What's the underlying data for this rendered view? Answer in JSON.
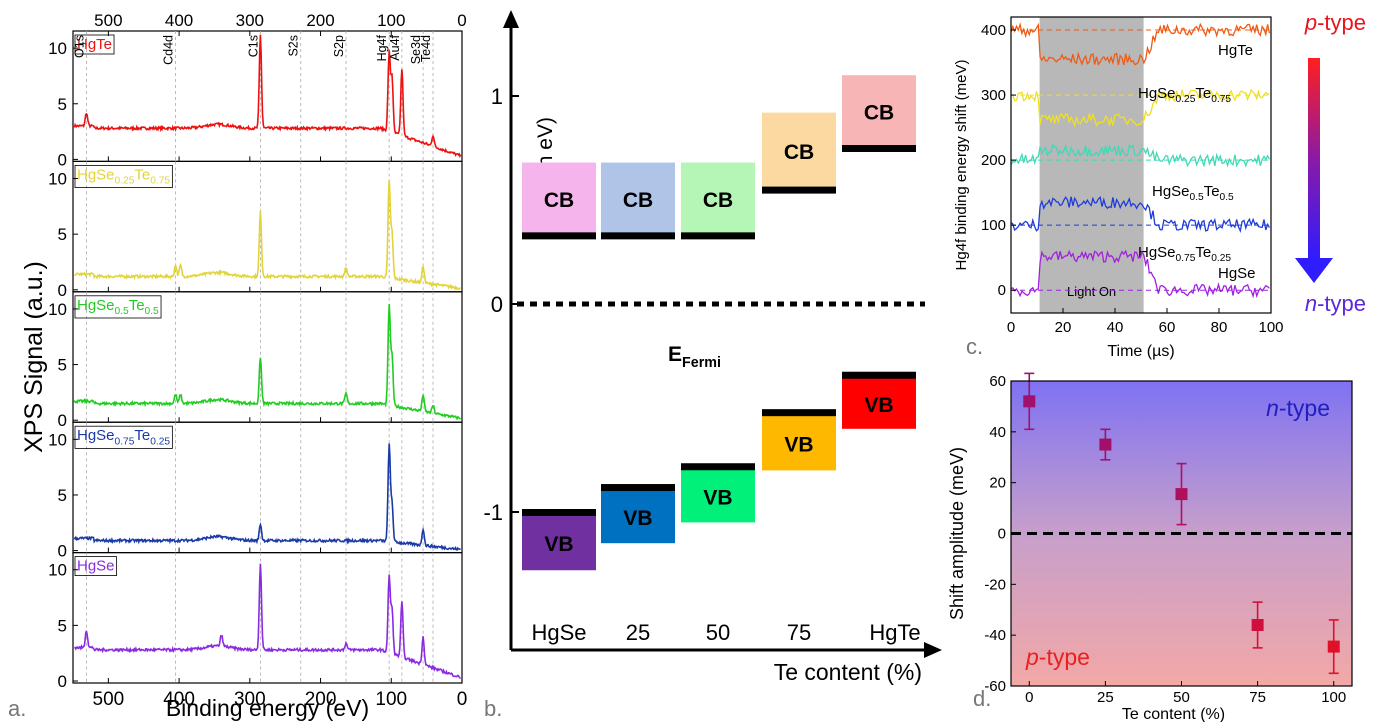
{
  "panel_labels": [
    "a.",
    "b.",
    "c.",
    "d."
  ],
  "colors": {
    "HgTe": "#ee1111",
    "HgSe0.25Te0.75": "#e3d43a",
    "HgSe0.5Te0.5": "#22cc22",
    "HgSe0.75Te0.25": "#1a3aa8",
    "HgSe": "#8a2be2",
    "c_HgTe": "#f05a14",
    "c_HgSe0.25Te0.75": "#f0e01e",
    "c_HgSe0.5Te0.5": "#3fd9b4",
    "c_HgSe0.75Te0.25": "#1e3cdc",
    "c_HgSe": "#a020e0",
    "n_type": "#5a28dc",
    "p_type": "#e8141e"
  },
  "chart_data": [
    {
      "type": "line",
      "panel": "a",
      "xlabel": "Binding energy (eV)",
      "ylabel": "XPS Signal (a.u.)",
      "xlim": [
        550,
        0
      ],
      "ylim": [
        0,
        11
      ],
      "xticks": [
        "500",
        "400",
        "300",
        "200",
        "100",
        "0"
      ],
      "top_xticks": [
        "500",
        "400",
        "300",
        "200",
        "100",
        "0"
      ],
      "yticks": [
        "0",
        "5",
        "10"
      ],
      "core_levels": [
        {
          "label": "O1s",
          "energy": 531
        },
        {
          "label": "Cd4d",
          "energy": 405
        },
        {
          "label": "C1s",
          "energy": 285
        },
        {
          "label": "S2s",
          "energy": 228
        },
        {
          "label": "S2p",
          "energy": 164
        },
        {
          "label": "Hg4f",
          "energy": 103
        },
        {
          "label": "Au4f",
          "energy": 85
        },
        {
          "label": "Se3d",
          "energy": 55
        },
        {
          "label": "Te4d",
          "energy": 41
        }
      ],
      "series": [
        {
          "name": "HgTe",
          "sub": [],
          "baseline": 2.8,
          "peaks": [
            [
              531,
              1.2
            ],
            [
              285,
              8.4
            ],
            [
              103,
              7.0
            ],
            [
              99,
              5.0
            ],
            [
              85,
              6.0
            ],
            [
              41,
              1.0
            ]
          ]
        },
        {
          "name": "HgSe0.25Te0.75",
          "label_parts": [
            [
              "HgSe",
              ""
            ],
            [
              "0.25",
              "sub"
            ],
            [
              "Te",
              ""
            ],
            [
              "0.75",
              "sub"
            ]
          ],
          "baseline": 1.2,
          "peaks": [
            [
              405,
              1.0
            ],
            [
              398,
              1.0
            ],
            [
              285,
              5.8
            ],
            [
              164,
              0.8
            ],
            [
              103,
              8.6
            ],
            [
              99,
              4.0
            ],
            [
              55,
              1.5
            ]
          ]
        },
        {
          "name": "HgSe0.5Te0.5",
          "label_parts": [
            [
              "HgSe",
              ""
            ],
            [
              "0.5",
              "sub"
            ],
            [
              "Te",
              ""
            ],
            [
              "0.5",
              "sub"
            ]
          ],
          "baseline": 1.5,
          "peaks": [
            [
              405,
              0.8
            ],
            [
              398,
              0.8
            ],
            [
              285,
              4.2
            ],
            [
              164,
              0.9
            ],
            [
              103,
              8.8
            ],
            [
              99,
              4.5
            ],
            [
              55,
              1.5
            ],
            [
              41,
              0.7
            ]
          ]
        },
        {
          "name": "HgSe0.75Te0.25",
          "label_parts": [
            [
              "HgSe",
              ""
            ],
            [
              "0.75",
              "sub"
            ],
            [
              "Te",
              ""
            ],
            [
              "0.25",
              "sub"
            ]
          ],
          "baseline": 0.9,
          "peaks": [
            [
              285,
              1.5
            ],
            [
              103,
              8.6
            ],
            [
              99,
              3.5
            ],
            [
              55,
              1.5
            ]
          ]
        },
        {
          "name": "HgSe",
          "label_parts": [
            [
              "HgSe",
              ""
            ]
          ],
          "baseline": 2.8,
          "peaks": [
            [
              531,
              1.6
            ],
            [
              340,
              1.0
            ],
            [
              285,
              7.8
            ],
            [
              164,
              0.6
            ],
            [
              103,
              6.8
            ],
            [
              99,
              4.0
            ],
            [
              85,
              5.0
            ],
            [
              55,
              2.5
            ]
          ]
        }
      ]
    },
    {
      "type": "diagram",
      "panel": "b",
      "ylabel": "E (in eV)",
      "xlabel": "Te content (%)",
      "ylim": [
        -1.65,
        1.4
      ],
      "yticks": [
        1,
        0,
        -1
      ],
      "ytick_labels": [
        "1",
        "0",
        "-1"
      ],
      "fermi_label": "E",
      "fermi_sub": "Fermi",
      "categories": [
        "HgSe",
        "25",
        "50",
        "75",
        "HgTe"
      ],
      "cb_label": "CB",
      "vb_label": "VB",
      "cb": [
        [
          0.33,
          0.68
        ],
        [
          0.33,
          0.68
        ],
        [
          0.33,
          0.68
        ],
        [
          0.55,
          0.92
        ],
        [
          0.75,
          1.1
        ]
      ],
      "vb": [
        [
          -1.0,
          -1.28
        ],
        [
          -0.88,
          -1.15
        ],
        [
          -0.78,
          -1.05
        ],
        [
          -0.52,
          -0.8
        ],
        [
          -0.34,
          -0.6
        ]
      ],
      "cb_colors": [
        "#f5b5ec",
        "#b0c4e8",
        "#b5f5b5",
        "#fcd9a0",
        "#f7b5b5"
      ],
      "vb_colors": [
        "#7030a0",
        "#0070c0",
        "#00f07a",
        "#ffb800",
        "#ff0000"
      ]
    },
    {
      "type": "line",
      "panel": "c",
      "xlabel": "Time (µs)",
      "ylabel": "Hg4f binding energy shift (meV)",
      "xlim": [
        0,
        100
      ],
      "ylim": [
        -35,
        420
      ],
      "xticks": [
        0,
        20,
        40,
        60,
        80,
        100
      ],
      "yticks": [
        0,
        100,
        200,
        300,
        400
      ],
      "light_on": [
        11,
        51
      ],
      "light_label": "Light On",
      "p_label": "p",
      "n_label": "n",
      "type_suffix": "-type",
      "series": [
        {
          "name": "HgTe",
          "label_parts": [
            [
              "HgTe",
              ""
            ]
          ],
          "baseline": 400,
          "delta": -45
        },
        {
          "name": "HgSe0.25Te0.75",
          "label_parts": [
            [
              "HgSe",
              ""
            ],
            [
              "0.25",
              "sub"
            ],
            [
              "Te",
              ""
            ],
            [
              "0.75",
              "sub"
            ]
          ],
          "baseline": 300,
          "delta": -38
        },
        {
          "name": "HgSe0.5Te0.5",
          "label_parts": [
            [
              "HgSe",
              ""
            ],
            [
              "0.5",
              "sub"
            ],
            [
              "Te",
              ""
            ],
            [
              "0.5",
              "sub"
            ]
          ],
          "baseline": 200,
          "delta": 15
        },
        {
          "name": "HgSe0.75Te0.25",
          "label_parts": [
            [
              "HgSe",
              ""
            ],
            [
              "0.75",
              "sub"
            ],
            [
              "Te",
              ""
            ],
            [
              "0.25",
              "sub"
            ]
          ],
          "baseline": 100,
          "delta": 35
        },
        {
          "name": "HgSe",
          "label_parts": [
            [
              "HgSe",
              ""
            ]
          ],
          "baseline": 0,
          "delta": 52
        }
      ]
    },
    {
      "type": "scatter",
      "panel": "d",
      "xlabel": "Te content (%)",
      "ylabel": "Shift amplitude (meV)",
      "xlim": [
        -6,
        106
      ],
      "ylim": [
        -60,
        60
      ],
      "xticks": [
        0,
        25,
        50,
        75,
        100
      ],
      "yticks": [
        60,
        40,
        20,
        0,
        -20,
        -40,
        -60
      ],
      "n_label": "n",
      "p_label": "p",
      "type_suffix": "-type",
      "points": [
        {
          "x": 0,
          "y": 52,
          "err": 11
        },
        {
          "x": 25,
          "y": 35,
          "err": 6
        },
        {
          "x": 50,
          "y": 15.5,
          "err": 12
        },
        {
          "x": 75,
          "y": -36,
          "err": 9
        },
        {
          "x": 100,
          "y": -44.5,
          "err": 10.5
        }
      ]
    }
  ]
}
